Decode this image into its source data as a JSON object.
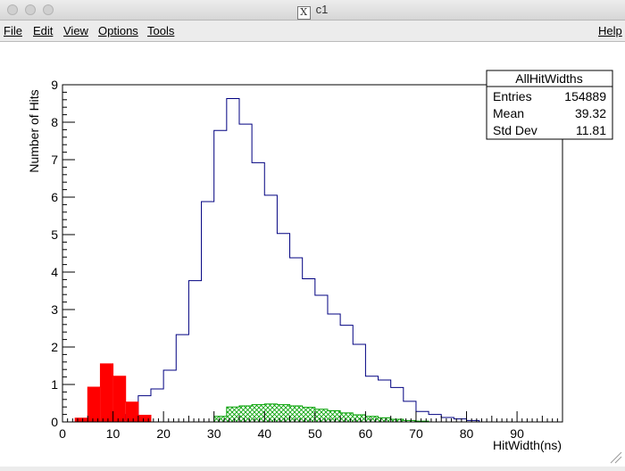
{
  "window": {
    "title": "c1"
  },
  "menu": {
    "file": "File",
    "edit": "Edit",
    "view": "View",
    "options": "Options",
    "tools": "Tools",
    "help": "Help"
  },
  "stats": {
    "title": "AllHitWidths",
    "rows": [
      {
        "label": "Entries",
        "value": "154889"
      },
      {
        "label": "Mean",
        "value": "39.32"
      },
      {
        "label": "Std Dev",
        "value": "11.81"
      }
    ]
  },
  "chart_data": {
    "type": "histogram",
    "xlabel": "HitWidth(ns)",
    "ylabel": "Number of Hits",
    "xlim": [
      0,
      99
    ],
    "ylim": [
      0,
      9
    ],
    "x_ticks": [
      0,
      10,
      20,
      30,
      40,
      50,
      60,
      70,
      80,
      90
    ],
    "y_ticks": [
      0,
      1,
      2,
      3,
      4,
      5,
      6,
      7,
      8,
      9
    ],
    "bin_width": 2.5,
    "series": [
      {
        "style": "outline",
        "color": "#000080",
        "bins_start": [
          10,
          12.5,
          15,
          17.5,
          20,
          22.5,
          25,
          27.5,
          30,
          32.5,
          35,
          37.5,
          40,
          42.5,
          45,
          47.5,
          50,
          52.5,
          55,
          57.5,
          60,
          62.5,
          65,
          67.5,
          70,
          72.5,
          75,
          77.5,
          80
        ],
        "values": [
          0.05,
          0.2,
          0.7,
          0.88,
          1.38,
          2.33,
          3.77,
          5.88,
          7.78,
          8.63,
          7.95,
          6.92,
          6.05,
          5.03,
          4.38,
          3.82,
          3.38,
          2.88,
          2.58,
          2.07,
          1.22,
          1.12,
          0.92,
          0.55,
          0.28,
          0.2,
          0.12,
          0.08,
          0.04
        ]
      },
      {
        "style": "filled",
        "color": "#ff0000",
        "bins_start": [
          2.5,
          5,
          7.5,
          10,
          12.5,
          15
        ],
        "values": [
          0.1,
          0.93,
          1.55,
          1.22,
          0.53,
          0.18
        ]
      },
      {
        "style": "hatched",
        "color": "#00a000",
        "bins_start": [
          30,
          32.5,
          35,
          37.5,
          40,
          42.5,
          45,
          47.5,
          50,
          52.5,
          55,
          57.5,
          60,
          62.5,
          65,
          67.5,
          70
        ],
        "values": [
          0.15,
          0.4,
          0.43,
          0.46,
          0.48,
          0.46,
          0.43,
          0.39,
          0.34,
          0.3,
          0.24,
          0.19,
          0.15,
          0.11,
          0.07,
          0.04,
          0.02
        ]
      }
    ]
  }
}
